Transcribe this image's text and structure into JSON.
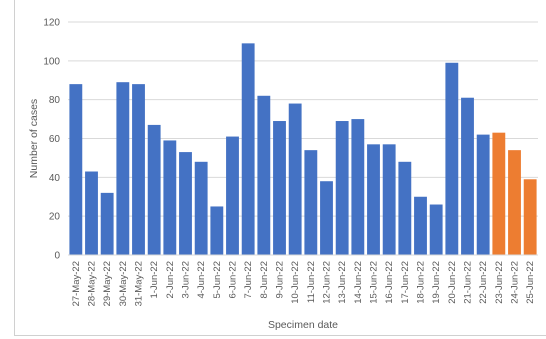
{
  "chart_data": {
    "type": "bar",
    "title": "",
    "xlabel": "Specimen date",
    "ylabel": "Number of cases",
    "ylim": [
      0,
      120
    ],
    "yticks": [
      0,
      20,
      40,
      60,
      80,
      100,
      120
    ],
    "grid": true,
    "legend": "none",
    "colors": {
      "reported": "#4472C4",
      "incomplete": "#ED7D31",
      "grid": "#D9D9D9",
      "text": "#595959"
    },
    "categories": [
      "27-May-22",
      "28-May-22",
      "29-May-22",
      "30-May-22",
      "31-May-22",
      "1-Jun-22",
      "2-Jun-22",
      "3-Jun-22",
      "4-Jun-22",
      "5-Jun-22",
      "6-Jun-22",
      "7-Jun-22",
      "8-Jun-22",
      "9-Jun-22",
      "10-Jun-22",
      "11-Jun-22",
      "12-Jun-22",
      "13-Jun-22",
      "14-Jun-22",
      "15-Jun-22",
      "16-Jun-22",
      "17-Jun-22",
      "18-Jun-22",
      "19-Jun-22",
      "20-Jun-22",
      "21-Jun-22",
      "22-Jun-22",
      "23-Jun-22",
      "24-Jun-22",
      "25-Jun-22"
    ],
    "values": [
      88,
      43,
      32,
      89,
      88,
      67,
      59,
      53,
      48,
      25,
      61,
      109,
      82,
      69,
      78,
      54,
      38,
      69,
      70,
      57,
      57,
      48,
      30,
      26,
      99,
      81,
      62,
      63,
      54,
      39
    ],
    "highlight_from_index": 27
  }
}
